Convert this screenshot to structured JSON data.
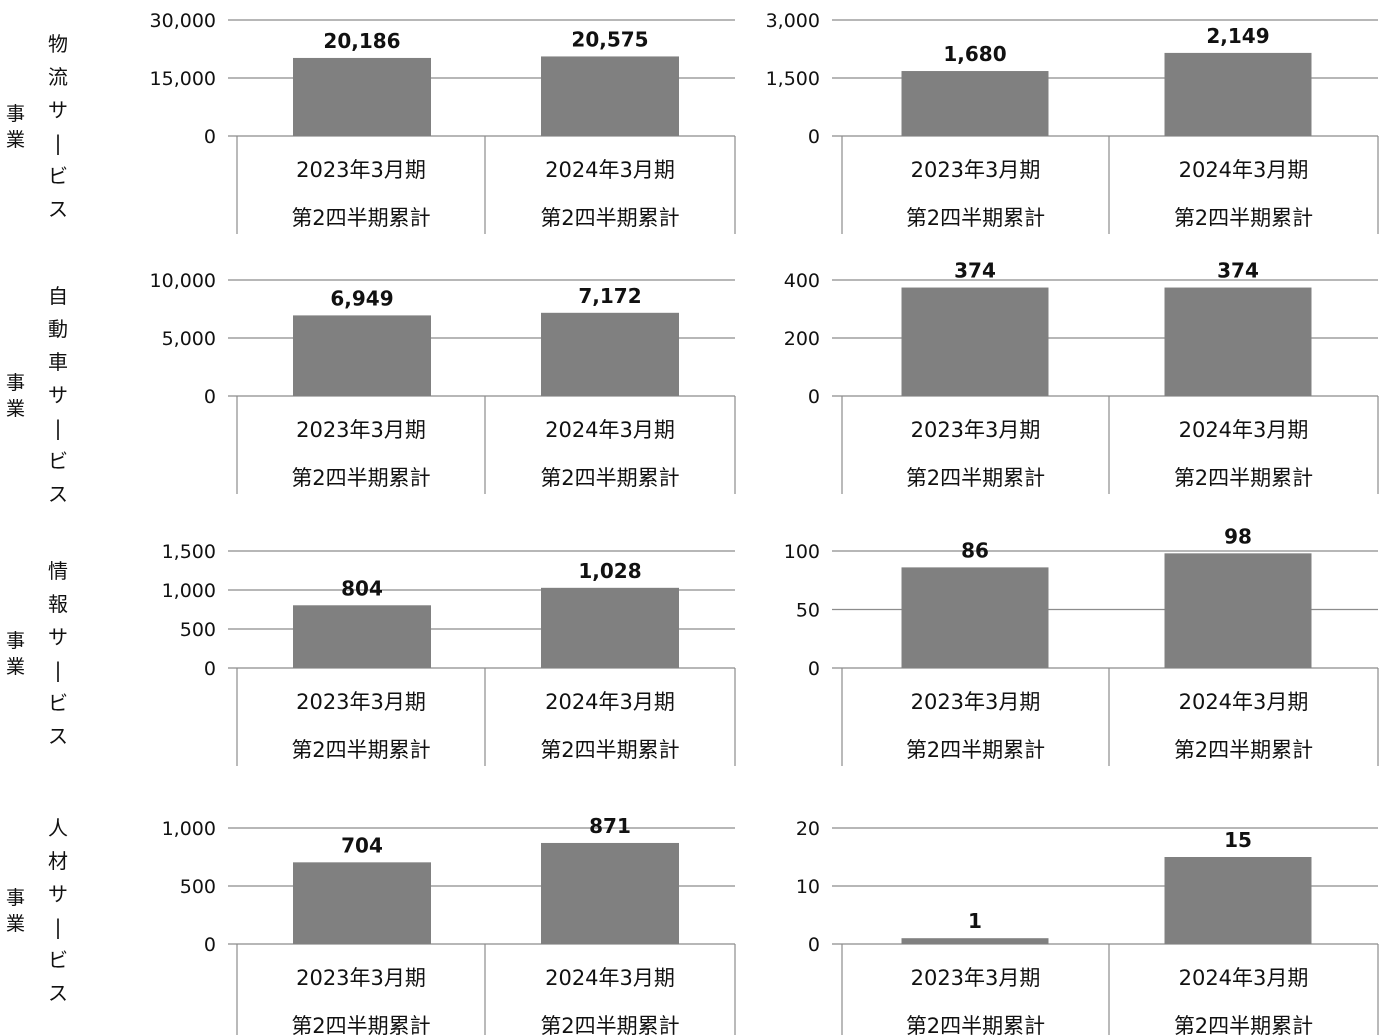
{
  "segments": [
    {
      "name": "物流サービス",
      "suffix": "事業"
    },
    {
      "name": "自動車サービス",
      "suffix": "事業"
    },
    {
      "name": "情報サービス",
      "suffix": "事業"
    },
    {
      "name": "人材サービス",
      "suffix": "事業"
    }
  ],
  "chart_data": [
    {
      "type": "bar",
      "segment": "物流サービス事業",
      "categories": [
        [
          "2023年3月期",
          "第2四半期累計"
        ],
        [
          "2024年3月期",
          "第2四半期累計"
        ]
      ],
      "values": [
        20186,
        20575
      ],
      "value_labels": [
        "20,186",
        "20,575"
      ],
      "ylim": [
        0,
        30000
      ],
      "yticks": [
        0,
        15000,
        30000
      ],
      "ytick_labels": [
        "0",
        "15,000",
        "30,000"
      ],
      "grid": true,
      "bar_color": "#808080"
    },
    {
      "type": "bar",
      "segment": "物流サービス事業",
      "categories": [
        [
          "2023年3月期",
          "第2四半期累計"
        ],
        [
          "2024年3月期",
          "第2四半期累計"
        ]
      ],
      "values": [
        1680,
        2149
      ],
      "value_labels": [
        "1,680",
        "2,149"
      ],
      "ylim": [
        0,
        3000
      ],
      "yticks": [
        0,
        1500,
        3000
      ],
      "ytick_labels": [
        "0",
        "1,500",
        "3,000"
      ],
      "grid": true,
      "bar_color": "#808080"
    },
    {
      "type": "bar",
      "segment": "自動車サービス事業",
      "categories": [
        [
          "2023年3月期",
          "第2四半期累計"
        ],
        [
          "2024年3月期",
          "第2四半期累計"
        ]
      ],
      "values": [
        6949,
        7172
      ],
      "value_labels": [
        "6,949",
        "7,172"
      ],
      "ylim": [
        0,
        10000
      ],
      "yticks": [
        0,
        5000,
        10000
      ],
      "ytick_labels": [
        "0",
        "5,000",
        "10,000"
      ],
      "grid": true,
      "bar_color": "#808080"
    },
    {
      "type": "bar",
      "segment": "自動車サービス事業",
      "categories": [
        [
          "2023年3月期",
          "第2四半期累計"
        ],
        [
          "2024年3月期",
          "第2四半期累計"
        ]
      ],
      "values": [
        374,
        374
      ],
      "value_labels": [
        "374",
        "374"
      ],
      "ylim": [
        0,
        400
      ],
      "yticks": [
        0,
        200,
        400
      ],
      "ytick_labels": [
        "0",
        "200",
        "400"
      ],
      "grid": true,
      "bar_color": "#808080"
    },
    {
      "type": "bar",
      "segment": "情報サービス事業",
      "categories": [
        [
          "2023年3月期",
          "第2四半期累計"
        ],
        [
          "2024年3月期",
          "第2四半期累計"
        ]
      ],
      "values": [
        804,
        1028
      ],
      "value_labels": [
        "804",
        "1,028"
      ],
      "ylim": [
        0,
        1500
      ],
      "yticks": [
        0,
        500,
        1000,
        1500
      ],
      "ytick_labels": [
        "0",
        "500",
        "1,000",
        "1,500"
      ],
      "grid": true,
      "bar_color": "#808080"
    },
    {
      "type": "bar",
      "segment": "情報サービス事業",
      "categories": [
        [
          "2023年3月期",
          "第2四半期累計"
        ],
        [
          "2024年3月期",
          "第2四半期累計"
        ]
      ],
      "values": [
        86,
        98
      ],
      "value_labels": [
        "86",
        "98"
      ],
      "ylim": [
        0,
        100
      ],
      "yticks": [
        0,
        50,
        100
      ],
      "ytick_labels": [
        "0",
        "50",
        "100"
      ],
      "grid": true,
      "bar_color": "#808080"
    },
    {
      "type": "bar",
      "segment": "人材サービス事業",
      "categories": [
        [
          "2023年3月期",
          "第2四半期累計"
        ],
        [
          "2024年3月期",
          "第2四半期累計"
        ]
      ],
      "values": [
        704,
        871
      ],
      "value_labels": [
        "704",
        "871"
      ],
      "ylim": [
        0,
        1000
      ],
      "yticks": [
        0,
        500,
        1000
      ],
      "ytick_labels": [
        "0",
        "500",
        "1,000"
      ],
      "grid": true,
      "bar_color": "#808080"
    },
    {
      "type": "bar",
      "segment": "人材サービス事業",
      "categories": [
        [
          "2023年3月期",
          "第2四半期累計"
        ],
        [
          "2024年3月期",
          "第2四半期累計"
        ]
      ],
      "values": [
        1,
        15
      ],
      "value_labels": [
        "1",
        "15"
      ],
      "ylim": [
        0,
        20
      ],
      "yticks": [
        0,
        10,
        20
      ],
      "ytick_labels": [
        "0",
        "10",
        "20"
      ],
      "grid": true,
      "bar_color": "#808080"
    }
  ]
}
